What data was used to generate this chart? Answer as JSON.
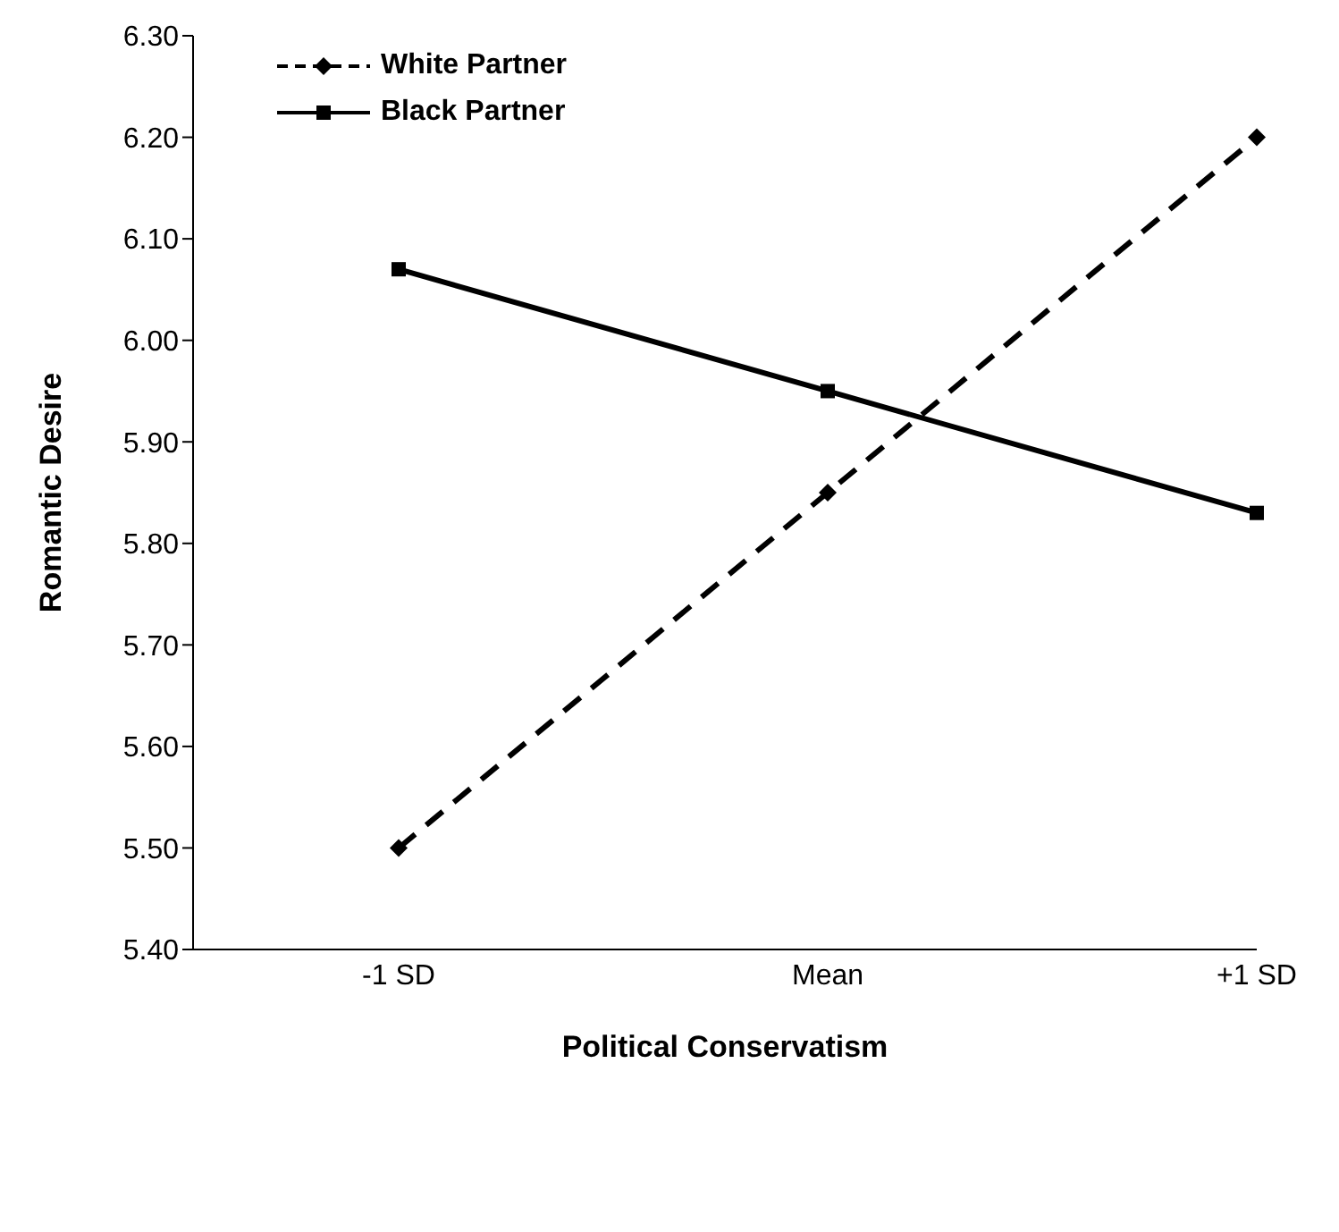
{
  "chart_data": {
    "type": "line",
    "xlabel": "Political Conservatism",
    "ylabel": "Romantic Desire",
    "categories": [
      "-1 SD",
      "Mean",
      "+1 SD"
    ],
    "series": [
      {
        "name": "White Partner",
        "color": "#000000",
        "values": [
          5.5,
          5.85,
          6.2
        ],
        "marker": "diamond",
        "line_style": "dashed"
      },
      {
        "name": "Black Partner",
        "color": "#000000",
        "values": [
          6.07,
          5.95,
          5.83
        ],
        "marker": "square",
        "line_style": "solid"
      }
    ],
    "ylim": [
      5.4,
      6.3
    ],
    "yticks": [
      {
        "value": 5.4,
        "label": "5.40"
      },
      {
        "value": 5.5,
        "label": "5.50"
      },
      {
        "value": 5.6,
        "label": "5.60"
      },
      {
        "value": 5.7,
        "label": "5.70"
      },
      {
        "value": 5.8,
        "label": "5.80"
      },
      {
        "value": 5.9,
        "label": "5.90"
      },
      {
        "value": 6.0,
        "label": "6.00"
      },
      {
        "value": 6.1,
        "label": "6.10"
      },
      {
        "value": 6.2,
        "label": "6.20"
      },
      {
        "value": 6.3,
        "label": "6.30"
      }
    ],
    "grid": false,
    "legend": "top left"
  }
}
